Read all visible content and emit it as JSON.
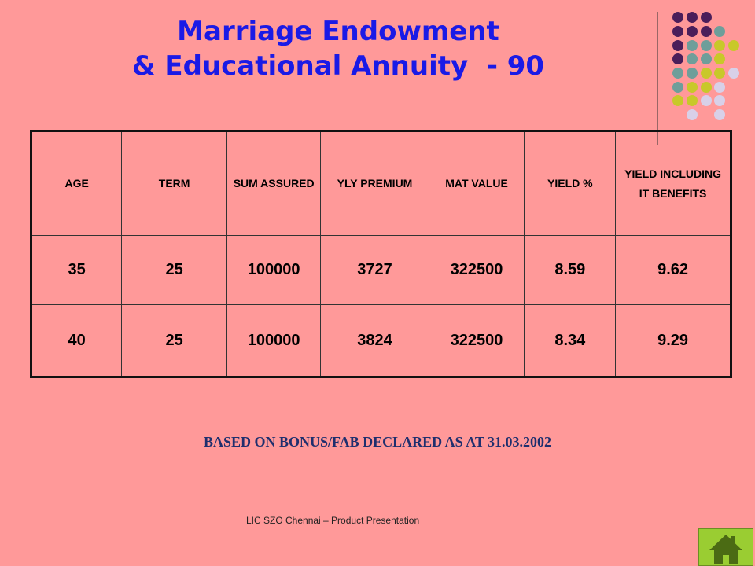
{
  "title": {
    "line1": "Marriage Endowment",
    "line2": "& Educational Annuity  - 90"
  },
  "table": {
    "header": [
      "AGE",
      "TERM",
      "SUM ASSURED",
      "YLY PREMIUM",
      "MAT VALUE",
      "YIELD %",
      "YIELD INCLUDING IT BENEFITS"
    ],
    "rows": [
      [
        "35",
        "25",
        "100000",
        "3727",
        "322500",
        "8.59",
        "9.62"
      ],
      [
        "40",
        "25",
        "100000",
        "3824",
        "322500",
        "8.34",
        "9.29"
      ]
    ]
  },
  "note": "BASED ON BONUS/FAB DECLARED AS AT 31.03.2002",
  "footer": "LIC SZO Chennai – Product Presentation"
}
